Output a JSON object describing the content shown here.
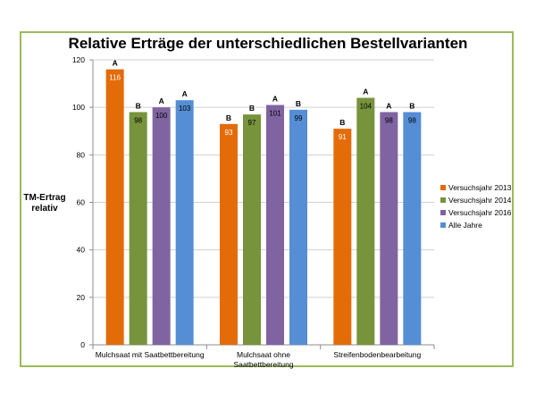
{
  "chart_data": {
    "type": "bar",
    "title": "Relative Erträge der unterschiedlichen Bestellvarianten",
    "ylabel_lines": [
      "TM-Ertrag",
      "relativ"
    ],
    "xlabel": "",
    "ylim": [
      0,
      120
    ],
    "yticks": [
      0,
      20,
      40,
      60,
      80,
      100,
      120
    ],
    "grid": true,
    "legend_position": "right",
    "categories": [
      [
        "Mulchsaat mit Saatbettbereitung"
      ],
      [
        "Mulchsaat ohne",
        "Saatbettbereitung"
      ],
      [
        "Streifenbodenbearbeitung"
      ]
    ],
    "series": [
      {
        "name": "Versuchsjahr 2013",
        "color": "#e36c09",
        "values": [
          116,
          93,
          91
        ],
        "labels": [
          "116",
          "93",
          "91"
        ],
        "significance": [
          "A",
          "B",
          "B"
        ]
      },
      {
        "name": "Versuchsjahr 2014",
        "color": "#77933c",
        "values": [
          98,
          97,
          104
        ],
        "labels": [
          "98",
          "97",
          "104"
        ],
        "significance": [
          "B",
          "B",
          "A"
        ]
      },
      {
        "name": "Versuchsjahr 2016",
        "color": "#8064a2",
        "values": [
          100,
          101,
          98
        ],
        "labels": [
          "100",
          "101",
          "98"
        ],
        "significance": [
          "A",
          "A",
          "A"
        ]
      },
      {
        "name": "Alle Jahre",
        "color": "#558ed5",
        "values": [
          103,
          99,
          98
        ],
        "labels": [
          "103",
          "99",
          "98"
        ],
        "significance": [
          "A",
          "B",
          "B"
        ]
      }
    ]
  }
}
